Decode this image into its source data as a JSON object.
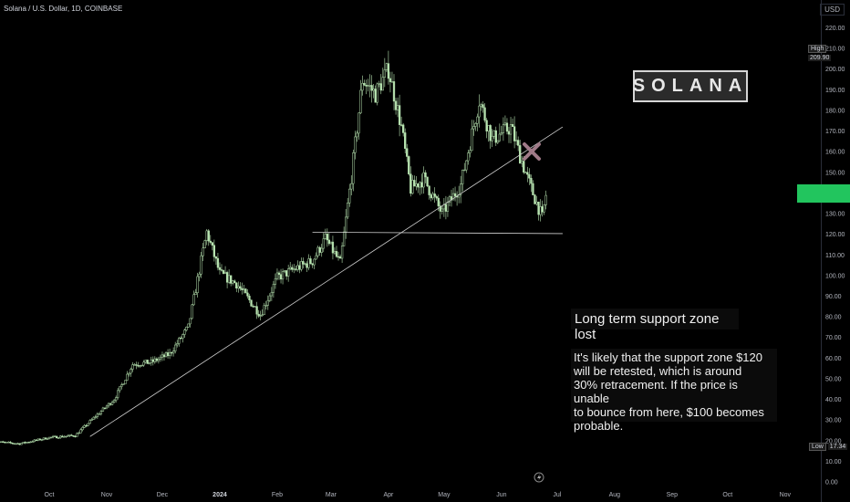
{
  "header": {
    "title": "Solana / U.S. Dollar, 1D, COINBASE",
    "currency": "USD"
  },
  "logo_text": "SOLANA",
  "annotations": {
    "headline": "Long term support zone lost",
    "body": "It's likely that the support zone $120\nwill be retested, which is around\n30% retracement. If the price is unable\nto bounce from here, $100 becomes\nprobable."
  },
  "markers": {
    "high_label": "High",
    "high_value": "209.90",
    "low_label": "Low",
    "low_value": "17.34"
  },
  "colors": {
    "up": "#b7e3b0",
    "down": "#b7e3b0",
    "current_price": "#22c55e",
    "cross": "#a07a88"
  },
  "chart_data": {
    "type": "candlestick",
    "title": "Solana / U.S. Dollar, 1D, COINBASE",
    "y_unit": "USD",
    "ylim": [
      0,
      220
    ],
    "y_ticks": [
      "220.00",
      "210.00",
      "200.00",
      "190.00",
      "180.00",
      "170.00",
      "160.00",
      "150.00",
      "140.00",
      "130.00",
      "120.00",
      "110.00",
      "100.00",
      "90.00",
      "80.00",
      "70.00",
      "60.00",
      "50.00",
      "40.00",
      "30.00",
      "20.00",
      "10.00",
      "0.00"
    ],
    "x_labels": [
      "Oct",
      "Nov",
      "Dec",
      "2024",
      "Feb",
      "Mar",
      "Apr",
      "May",
      "Jun",
      "Jul",
      "Aug",
      "Sep",
      "Oct",
      "Nov"
    ],
    "price_path": [
      [
        "2023-09-01",
        19.5
      ],
      [
        "2023-09-15",
        18.5
      ],
      [
        "2023-10-01",
        21.5
      ],
      [
        "2023-10-15",
        22.5
      ],
      [
        "2023-10-25",
        31
      ],
      [
        "2023-11-05",
        40
      ],
      [
        "2023-11-15",
        57
      ],
      [
        "2023-11-25",
        58
      ],
      [
        "2023-12-05",
        62
      ],
      [
        "2023-12-15",
        75
      ],
      [
        "2023-12-25",
        121
      ],
      [
        "2024-01-01",
        101
      ],
      [
        "2024-01-10",
        96
      ],
      [
        "2024-01-23",
        81
      ],
      [
        "2024-02-01",
        99
      ],
      [
        "2024-02-10",
        103
      ],
      [
        "2024-02-20",
        107
      ],
      [
        "2024-02-27",
        118
      ],
      [
        "2024-03-06",
        106
      ],
      [
        "2024-03-12",
        148
      ],
      [
        "2024-03-18",
        195
      ],
      [
        "2024-03-25",
        188
      ],
      [
        "2024-04-01",
        200
      ],
      [
        "2024-04-08",
        172
      ],
      [
        "2024-04-13",
        142
      ],
      [
        "2024-04-20",
        147
      ],
      [
        "2024-04-30",
        130
      ],
      [
        "2024-05-10",
        144
      ],
      [
        "2024-05-20",
        185
      ],
      [
        "2024-05-27",
        166
      ],
      [
        "2024-06-06",
        172
      ],
      [
        "2024-06-15",
        147
      ],
      [
        "2024-06-23",
        128
      ],
      [
        "2024-06-25",
        139
      ]
    ],
    "support_level": 121,
    "trendline": {
      "start": [
        "2023-10-23",
        22
      ],
      "end": [
        "2024-07-04",
        172
      ]
    },
    "current_price": 139.6,
    "high": 209.9,
    "low": 17.34
  }
}
